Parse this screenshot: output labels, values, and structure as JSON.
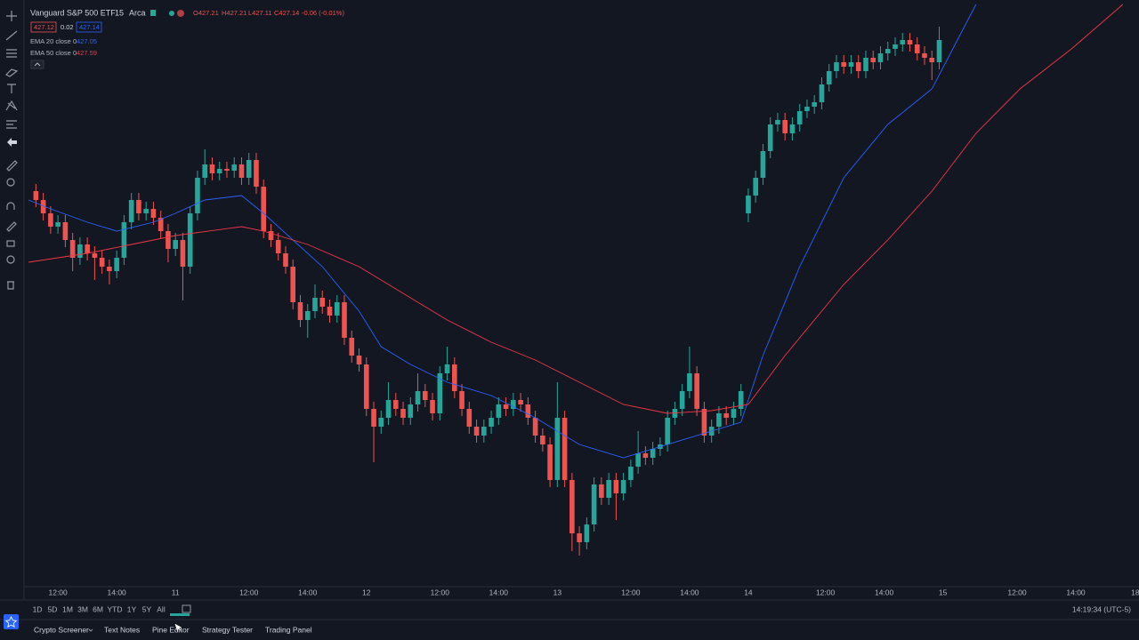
{
  "ui": {
    "legend": {
      "symbol": "Vanguard S&P 500 ETF",
      "interval": "15",
      "exchange": "Arca",
      "open": "O427.21",
      "high": "H427.21",
      "low": "L427.11",
      "close": "C427.14",
      "change": "-0.06 (-0.01%)",
      "bid": "427.12",
      "spread": "0.02",
      "ask": "427.14"
    },
    "ranges": [
      "1D",
      "5D",
      "1M",
      "3M",
      "6M",
      "YTD",
      "1Y",
      "5Y",
      "All"
    ],
    "clock": "14:19:34 (UTC-5)",
    "tabs": [
      "Crypto Screener",
      "Text Notes",
      "Pine Editor",
      "Strategy Tester",
      "Trading Panel"
    ]
  },
  "chart_data": {
    "type": "candlestick",
    "up_color": "#26a69a",
    "down_color": "#ef5350",
    "grid": false,
    "xlim": [
      -1.5,
      150.2
    ],
    "ylim": [
      421.4,
      428.0
    ],
    "xticks": [
      {
        "value": 3,
        "label": "12:00"
      },
      {
        "value": 11,
        "label": "14:00"
      },
      {
        "value": 19,
        "label": "11"
      },
      {
        "value": 29,
        "label": "12:00"
      },
      {
        "value": 37,
        "label": "14:00"
      },
      {
        "value": 45,
        "label": "12"
      },
      {
        "value": 55,
        "label": "12:00"
      },
      {
        "value": 63,
        "label": "14:00"
      },
      {
        "value": 71,
        "label": "13"
      },
      {
        "value": 81,
        "label": "12:00"
      },
      {
        "value": 89,
        "label": "14:00"
      },
      {
        "value": 97,
        "label": "14"
      },
      {
        "value": 107.5,
        "label": "12:00"
      },
      {
        "value": 115.5,
        "label": "14:00"
      },
      {
        "value": 123.5,
        "label": "15"
      },
      {
        "value": 133.6,
        "label": "12:00"
      },
      {
        "value": 141.6,
        "label": "14:00"
      },
      {
        "value": 149.7,
        "label": "18"
      }
    ],
    "ohlc": [
      [
        425.85,
        425.93,
        425.67,
        425.75
      ],
      [
        425.75,
        425.83,
        425.52,
        425.6
      ],
      [
        425.6,
        425.68,
        425.37,
        425.45
      ],
      [
        425.45,
        425.58,
        425.37,
        425.5
      ],
      [
        425.5,
        425.58,
        425.22,
        425.3
      ],
      [
        425.3,
        425.38,
        424.95,
        425.1
      ],
      [
        425.1,
        425.33,
        425.02,
        425.25
      ],
      [
        425.25,
        425.33,
        425.07,
        425.15
      ],
      [
        425.15,
        425.23,
        424.85,
        425.1
      ],
      [
        425.1,
        425.18,
        424.92,
        425.0
      ],
      [
        425.0,
        425.08,
        424.8,
        424.95
      ],
      [
        424.95,
        425.18,
        424.87,
        425.1
      ],
      [
        425.1,
        425.58,
        425.02,
        425.5
      ],
      [
        425.5,
        425.83,
        425.42,
        425.75
      ],
      [
        425.75,
        425.83,
        425.52,
        425.6
      ],
      [
        425.6,
        425.73,
        425.52,
        425.65
      ],
      [
        425.65,
        425.73,
        425.47,
        425.55
      ],
      [
        425.55,
        425.63,
        425.32,
        425.4
      ],
      [
        425.4,
        425.48,
        425.05,
        425.2
      ],
      [
        425.2,
        425.38,
        425.12,
        425.3
      ],
      [
        425.3,
        425.38,
        424.62,
        425.0
      ],
      [
        425.0,
        425.68,
        424.92,
        425.6
      ],
      [
        425.6,
        426.08,
        425.52,
        426.0
      ],
      [
        426.0,
        426.32,
        425.92,
        426.15
      ],
      [
        426.15,
        426.23,
        425.97,
        426.05
      ],
      [
        426.05,
        426.18,
        425.97,
        426.1
      ],
      [
        426.1,
        426.18,
        426.0,
        426.08
      ],
      [
        426.08,
        426.23,
        426.0,
        426.15
      ],
      [
        426.15,
        426.23,
        425.92,
        426.0
      ],
      [
        426.0,
        426.28,
        425.92,
        426.2
      ],
      [
        426.2,
        426.28,
        425.82,
        425.9
      ],
      [
        425.9,
        425.98,
        425.32,
        425.4
      ],
      [
        425.4,
        425.48,
        425.22,
        425.3
      ],
      [
        425.3,
        425.38,
        425.07,
        425.15
      ],
      [
        425.15,
        425.23,
        424.92,
        425.0
      ],
      [
        425.0,
        425.08,
        424.52,
        424.6
      ],
      [
        424.6,
        424.68,
        424.32,
        424.4
      ],
      [
        424.4,
        424.58,
        424.2,
        424.5
      ],
      [
        424.5,
        424.8,
        424.42,
        424.65
      ],
      [
        424.65,
        424.73,
        424.47,
        424.55
      ],
      [
        424.55,
        424.63,
        424.37,
        424.45
      ],
      [
        424.45,
        424.68,
        424.37,
        424.6
      ],
      [
        424.6,
        424.68,
        424.12,
        424.2
      ],
      [
        424.2,
        424.28,
        423.92,
        424.0
      ],
      [
        424.0,
        424.08,
        423.82,
        423.9
      ],
      [
        423.9,
        423.98,
        423.32,
        423.4
      ],
      [
        423.4,
        423.48,
        422.8,
        423.2
      ],
      [
        423.2,
        423.38,
        423.12,
        423.3
      ],
      [
        423.3,
        423.7,
        423.22,
        423.5
      ],
      [
        423.5,
        423.58,
        423.32,
        423.4
      ],
      [
        423.4,
        423.48,
        423.22,
        423.3
      ],
      [
        423.3,
        423.53,
        423.22,
        423.45
      ],
      [
        423.45,
        423.8,
        423.37,
        423.6
      ],
      [
        423.6,
        423.68,
        423.42,
        423.5
      ],
      [
        423.5,
        423.58,
        423.27,
        423.35
      ],
      [
        423.35,
        423.88,
        423.27,
        423.8
      ],
      [
        423.8,
        424.1,
        423.72,
        423.9
      ],
      [
        423.9,
        423.98,
        423.52,
        423.6
      ],
      [
        423.6,
        423.68,
        423.32,
        423.4
      ],
      [
        423.4,
        423.48,
        423.12,
        423.2
      ],
      [
        423.2,
        423.28,
        423.02,
        423.1
      ],
      [
        423.1,
        423.28,
        423.02,
        423.2
      ],
      [
        423.2,
        423.38,
        423.12,
        423.3
      ],
      [
        423.3,
        423.53,
        423.22,
        423.45
      ],
      [
        423.45,
        423.53,
        423.32,
        423.4
      ],
      [
        423.4,
        423.58,
        423.32,
        423.5
      ],
      [
        423.5,
        423.58,
        423.37,
        423.45
      ],
      [
        423.45,
        423.53,
        423.22,
        423.3
      ],
      [
        423.3,
        423.38,
        423.02,
        423.1
      ],
      [
        423.1,
        423.18,
        422.92,
        423.0
      ],
      [
        423.0,
        423.08,
        422.52,
        422.6
      ],
      [
        422.6,
        423.7,
        422.52,
        423.3
      ],
      [
        423.3,
        423.38,
        422.52,
        422.6
      ],
      [
        422.6,
        422.68,
        421.8,
        422.0
      ],
      [
        422.0,
        422.08,
        421.75,
        421.9
      ],
      [
        421.9,
        422.18,
        421.82,
        422.1
      ],
      [
        422.1,
        422.63,
        422.02,
        422.55
      ],
      [
        422.55,
        422.63,
        422.32,
        422.4
      ],
      [
        422.4,
        422.68,
        422.32,
        422.6
      ],
      [
        422.6,
        422.68,
        422.15,
        422.45
      ],
      [
        422.45,
        422.68,
        422.37,
        422.6
      ],
      [
        422.6,
        422.83,
        422.52,
        422.75
      ],
      [
        422.75,
        423.15,
        422.67,
        422.9
      ],
      [
        422.9,
        422.98,
        422.77,
        422.85
      ],
      [
        422.85,
        423.03,
        422.77,
        422.95
      ],
      [
        422.95,
        423.08,
        422.87,
        423.0
      ],
      [
        423.0,
        423.38,
        422.92,
        423.3
      ],
      [
        423.3,
        423.48,
        423.22,
        423.4
      ],
      [
        423.4,
        423.68,
        423.32,
        423.6
      ],
      [
        423.6,
        424.1,
        423.52,
        423.8
      ],
      [
        423.8,
        423.88,
        423.32,
        423.4
      ],
      [
        423.4,
        423.48,
        423.02,
        423.1
      ],
      [
        423.1,
        423.28,
        423.02,
        423.2
      ],
      [
        423.2,
        423.43,
        423.12,
        423.35
      ],
      [
        423.35,
        423.43,
        423.22,
        423.3
      ],
      [
        423.3,
        423.48,
        423.22,
        423.4
      ],
      [
        423.4,
        423.68,
        423.32,
        423.6
      ],
      [
        425.6,
        425.88,
        425.5,
        425.8
      ],
      [
        425.8,
        426.08,
        425.72,
        426.0
      ],
      [
        426.0,
        426.38,
        425.92,
        426.3
      ],
      [
        426.3,
        426.68,
        426.22,
        426.6
      ],
      [
        426.6,
        426.73,
        426.52,
        426.65
      ],
      [
        426.65,
        426.73,
        426.42,
        426.5
      ],
      [
        426.5,
        426.68,
        426.42,
        426.6
      ],
      [
        426.6,
        426.83,
        426.52,
        426.75
      ],
      [
        426.75,
        426.88,
        426.67,
        426.8
      ],
      [
        426.8,
        426.93,
        426.72,
        426.85
      ],
      [
        426.85,
        427.13,
        426.77,
        427.05
      ],
      [
        427.05,
        427.28,
        426.97,
        427.2
      ],
      [
        427.2,
        427.38,
        427.12,
        427.3
      ],
      [
        427.3,
        427.38,
        427.17,
        427.25
      ],
      [
        427.25,
        427.38,
        427.17,
        427.3
      ],
      [
        427.3,
        427.38,
        427.12,
        427.2
      ],
      [
        427.2,
        427.43,
        427.12,
        427.35
      ],
      [
        427.35,
        427.43,
        427.22,
        427.3
      ],
      [
        427.3,
        427.48,
        427.22,
        427.4
      ],
      [
        427.4,
        427.53,
        427.32,
        427.45
      ],
      [
        427.45,
        427.58,
        427.37,
        427.5
      ],
      [
        427.5,
        427.63,
        427.42,
        427.55
      ],
      [
        427.55,
        427.63,
        427.42,
        427.5
      ],
      [
        427.5,
        427.58,
        427.32,
        427.4
      ],
      [
        427.4,
        427.48,
        427.27,
        427.35
      ],
      [
        427.35,
        427.43,
        427.1,
        427.3
      ],
      [
        427.3,
        427.7,
        427.22,
        427.55
      ]
    ],
    "series": [
      {
        "name": "EMA 20 close 0",
        "legend_value": "427.05",
        "color": "#2962ff",
        "x": [
          -1,
          2,
          7,
          11,
          16,
          19,
          23,
          28,
          31,
          35,
          39,
          44,
          47,
          51,
          56,
          62,
          68,
          74,
          80,
          86,
          92,
          96,
          99,
          104,
          110,
          116,
          122,
          128
        ],
        "values": [
          425.75,
          425.65,
          425.5,
          425.4,
          425.5,
          425.6,
          425.75,
          425.8,
          425.6,
          425.3,
          425.0,
          424.5,
          424.1,
          423.9,
          423.7,
          423.55,
          423.3,
          423.0,
          422.85,
          423.0,
          423.15,
          423.25,
          424.0,
          425.0,
          426.0,
          426.6,
          427.0,
          427.95
        ]
      },
      {
        "name": "EMA 50 close 0",
        "legend_value": "427.59",
        "color": "#f23645",
        "x": [
          -1,
          7,
          13,
          19,
          28,
          31,
          37,
          44,
          50,
          56,
          62,
          68,
          74,
          80,
          86,
          92,
          97,
          102,
          110,
          116,
          122,
          128,
          134,
          141,
          148
        ],
        "values": [
          425.05,
          425.15,
          425.25,
          425.35,
          425.45,
          425.4,
          425.25,
          425.0,
          424.7,
          424.4,
          424.15,
          423.95,
          423.7,
          423.45,
          423.35,
          423.38,
          423.45,
          424.0,
          424.8,
          425.3,
          425.85,
          426.5,
          427.0,
          427.45,
          427.95
        ]
      }
    ]
  }
}
